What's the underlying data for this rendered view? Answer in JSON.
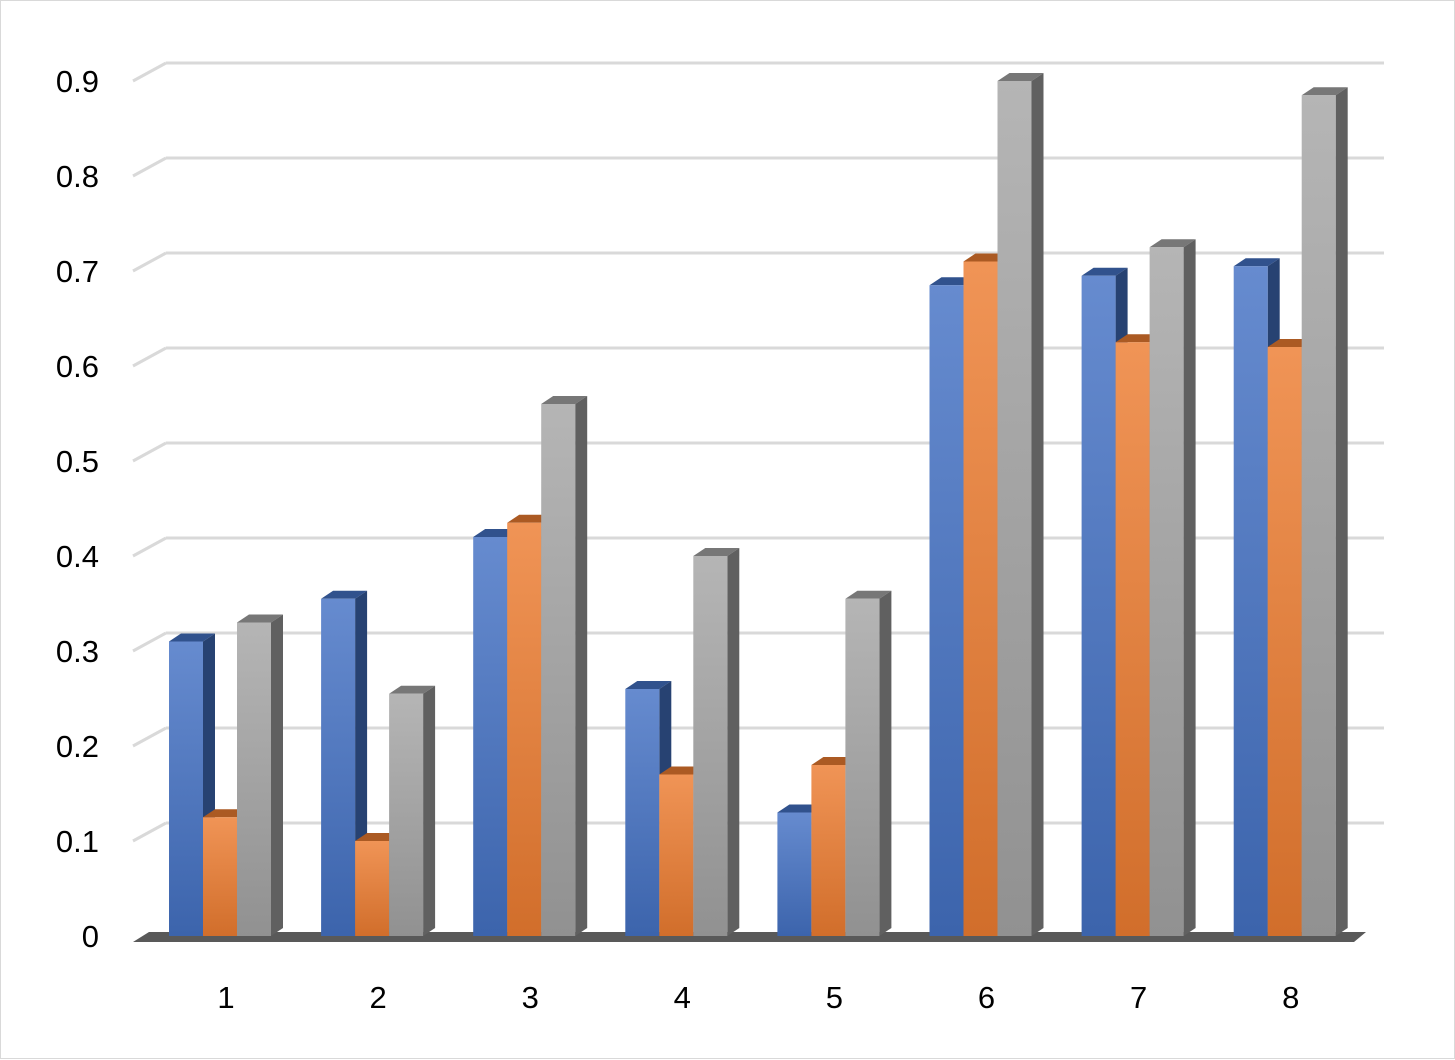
{
  "chart_data": {
    "type": "bar",
    "title": "",
    "xlabel": "",
    "ylabel": "",
    "categories": [
      "1",
      "2",
      "3",
      "4",
      "5",
      "6",
      "7",
      "8"
    ],
    "series": [
      {
        "values": [
          0.31,
          0.355,
          0.42,
          0.26,
          0.13,
          0.685,
          0.695,
          0.705
        ]
      },
      {
        "values": [
          0.125,
          0.1,
          0.435,
          0.17,
          0.18,
          0.71,
          0.625,
          0.62
        ]
      },
      {
        "values": [
          0.33,
          0.255,
          0.56,
          0.4,
          0.355,
          0.9,
          0.725,
          0.885
        ]
      }
    ],
    "ylim": [
      0,
      0.9
    ],
    "yticks": [
      "0",
      "0.1",
      "0.2",
      "0.3",
      "0.4",
      "0.5",
      "0.6",
      "0.7",
      "0.8",
      "0.9"
    ],
    "grid": true,
    "legend": "none",
    "style": "3d-clustered-column",
    "colors": {
      "series": [
        "#4472c4",
        "#ed7d31",
        "#a5a5a5"
      ],
      "gridline": "#d9d9d9",
      "floor": "#595959",
      "text": "#000000"
    }
  }
}
